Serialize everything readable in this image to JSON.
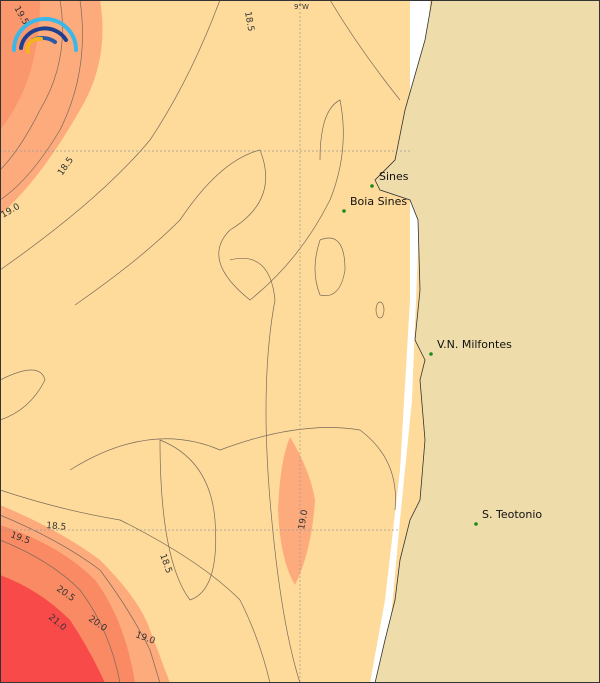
{
  "colors": {
    "ocean": "#fedb9a",
    "land": "#eedcaa",
    "sst_19": "#fdaa7c",
    "sst_20": "#f98a63",
    "sst_21": "#f94a4a",
    "contour": "#7a6a5a",
    "grid": "#999999",
    "station": "#1a8a1a"
  },
  "graticule": {
    "lon_label": "9°W"
  },
  "places": [
    {
      "name": "Sines"
    },
    {
      "name": "Boia Sines"
    },
    {
      "name": "V.N. Milfontes"
    },
    {
      "name": "S. Teotonio"
    }
  ],
  "contour_labels": [
    "19.5",
    "18.5",
    "18.5",
    "19.0",
    "18.5",
    "19.5",
    "20.5",
    "21.0",
    "20.0",
    "19.0",
    "18.5",
    "19.0"
  ],
  "logo": {
    "icon": "arc-waves-logo"
  }
}
